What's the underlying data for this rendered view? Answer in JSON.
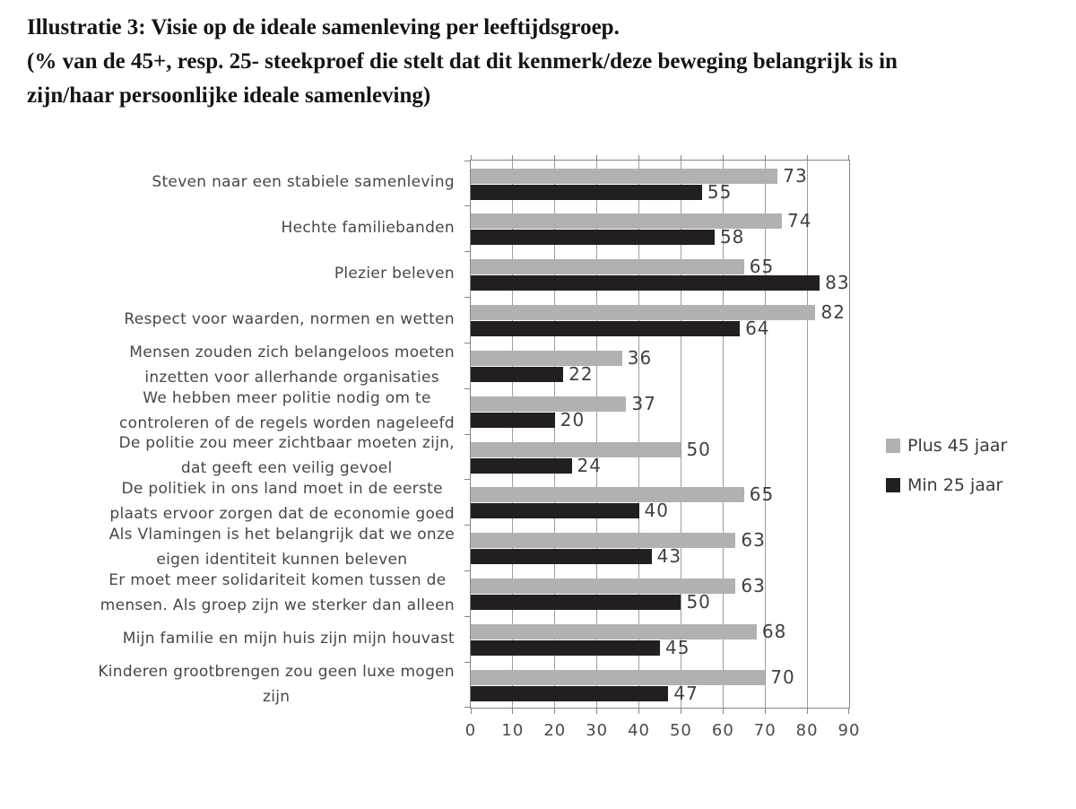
{
  "chart_data": {
    "type": "bar",
    "orientation": "horizontal",
    "title_lines": [
      "Illustratie 3: Visie op de ideale samenleving per leeftijdsgroep.",
      "(% van de 45+, resp. 25- steekproef die stelt dat dit kenmerk/deze beweging belangrijk is in",
      "zijn/haar persoonlijke ideale samenleving)"
    ],
    "categories": [
      {
        "lines": [
          "Steven naar een stabiele samenleving"
        ]
      },
      {
        "lines": [
          "Hechte familiebanden"
        ]
      },
      {
        "lines": [
          "Plezier beleven"
        ]
      },
      {
        "lines": [
          "Respect voor waarden, normen en wetten"
        ]
      },
      {
        "lines": [
          "Mensen zouden zich belangeloos moeten",
          "inzetten voor allerhande organisaties"
        ]
      },
      {
        "lines": [
          "We hebben meer politie nodig om te",
          "controleren of de regels worden nageleefd"
        ]
      },
      {
        "lines": [
          "De politie zou meer zichtbaar moeten zijn,",
          "dat geeft een veilig gevoel"
        ]
      },
      {
        "lines": [
          "De politiek in ons land moet in de eerste",
          "plaats ervoor zorgen dat de economie goed"
        ]
      },
      {
        "lines": [
          "Als Vlamingen is het belangrijk dat we onze",
          "eigen identiteit kunnen beleven"
        ]
      },
      {
        "lines": [
          "Er moet meer solidariteit komen tussen de",
          "mensen. Als groep zijn we sterker dan alleen"
        ]
      },
      {
        "lines": [
          "Mijn familie en mijn huis zijn mijn houvast"
        ]
      },
      {
        "lines": [
          "Kinderen grootbrengen zou geen luxe mogen",
          "zijn"
        ]
      }
    ],
    "series": [
      {
        "name": "Plus 45 jaar",
        "color": "#b1b1b3",
        "values": [
          73,
          74,
          65,
          82,
          36,
          37,
          50,
          65,
          63,
          63,
          68,
          70
        ]
      },
      {
        "name": "Min 25 jaar",
        "color": "#231f20",
        "values": [
          55,
          58,
          83,
          64,
          22,
          20,
          24,
          40,
          43,
          50,
          45,
          47
        ]
      }
    ],
    "xlim": [
      0,
      90
    ],
    "xticks": [
      0,
      10,
      20,
      30,
      40,
      50,
      60,
      70,
      80,
      90
    ],
    "grid": "vertical-major",
    "legend_position": "right",
    "bar_value_labels": true
  }
}
